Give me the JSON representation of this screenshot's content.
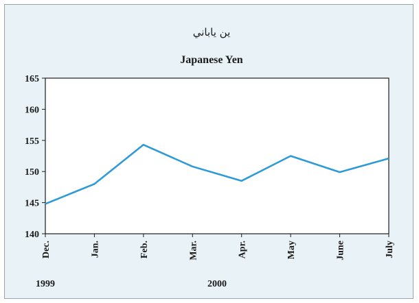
{
  "chart_data": {
    "type": "line",
    "title_arabic": "ين ياباني",
    "title": "Japanese Yen",
    "xlabel": "",
    "ylabel": "",
    "categories": [
      "Dec.",
      "Jan.",
      "Feb.",
      "Mar.",
      "Apr.",
      "May",
      "June",
      "July"
    ],
    "year_labels": [
      "1999",
      "2000"
    ],
    "series": [
      {
        "values": [
          144.8,
          148.0,
          154.3,
          150.8,
          148.5,
          152.5,
          149.9,
          152.1
        ]
      }
    ],
    "ylim": [
      140,
      165
    ],
    "yticks": [
      140,
      145,
      150,
      155,
      160,
      165
    ],
    "grid": false,
    "line_color": "#2e9bd6"
  }
}
